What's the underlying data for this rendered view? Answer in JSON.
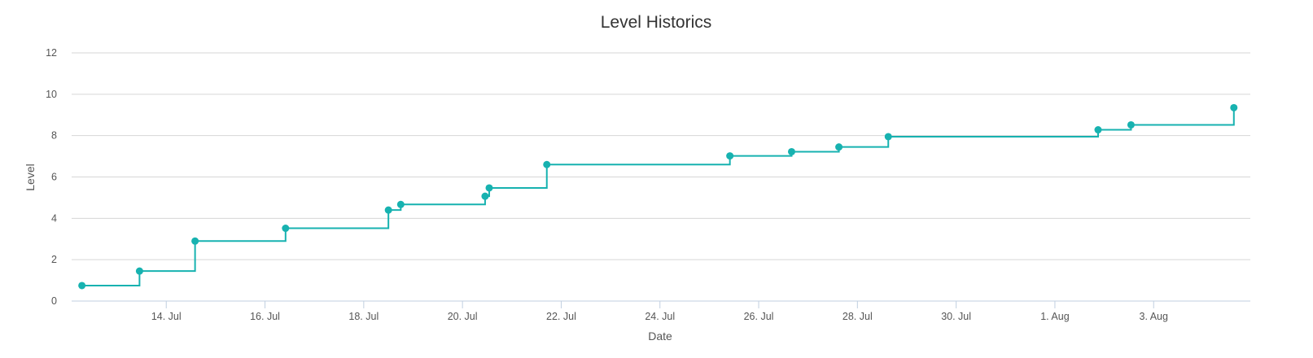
{
  "chart_data": {
    "type": "line",
    "step": true,
    "title": "Level Historics",
    "xlabel": "Date",
    "ylabel": "Level",
    "ylim": [
      0,
      12
    ],
    "yticks": [
      0,
      2,
      4,
      6,
      8,
      10,
      12
    ],
    "xlim": [
      "2025-07-12T02:00",
      "2025-08-04T23:00"
    ],
    "xticks": [
      {
        "date": "2025-07-14",
        "label": "14. Jul"
      },
      {
        "date": "2025-07-16",
        "label": "16. Jul"
      },
      {
        "date": "2025-07-18",
        "label": "18. Jul"
      },
      {
        "date": "2025-07-20",
        "label": "20. Jul"
      },
      {
        "date": "2025-07-22",
        "label": "22. Jul"
      },
      {
        "date": "2025-07-24",
        "label": "24. Jul"
      },
      {
        "date": "2025-07-26",
        "label": "26. Jul"
      },
      {
        "date": "2025-07-28",
        "label": "28. Jul"
      },
      {
        "date": "2025-07-30",
        "label": "30. Jul"
      },
      {
        "date": "2025-08-01",
        "label": "1. Aug"
      },
      {
        "date": "2025-08-03",
        "label": "3. Aug"
      }
    ],
    "grid": true,
    "color": "#17b2b0",
    "series": [
      {
        "points": [
          {
            "x": "2025-07-12T07:00",
            "y": 0.75
          },
          {
            "x": "2025-07-13T11:00",
            "y": 1.45
          },
          {
            "x": "2025-07-14T14:00",
            "y": 2.9
          },
          {
            "x": "2025-07-16T10:00",
            "y": 3.52
          },
          {
            "x": "2025-07-18T12:00",
            "y": 4.4
          },
          {
            "x": "2025-07-18T18:00",
            "y": 4.67
          },
          {
            "x": "2025-07-20T11:00",
            "y": 5.07
          },
          {
            "x": "2025-07-20T13:00",
            "y": 5.47
          },
          {
            "x": "2025-07-21T17:00",
            "y": 6.6
          },
          {
            "x": "2025-07-25T10:00",
            "y": 7.02
          },
          {
            "x": "2025-07-26T16:00",
            "y": 7.22
          },
          {
            "x": "2025-07-27T15:00",
            "y": 7.45
          },
          {
            "x": "2025-07-28T15:00",
            "y": 7.95
          },
          {
            "x": "2025-08-01T21:00",
            "y": 8.28
          },
          {
            "x": "2025-08-02T13:00",
            "y": 8.52
          },
          {
            "x": "2025-08-04T15:00",
            "y": 9.35
          }
        ]
      }
    ]
  }
}
